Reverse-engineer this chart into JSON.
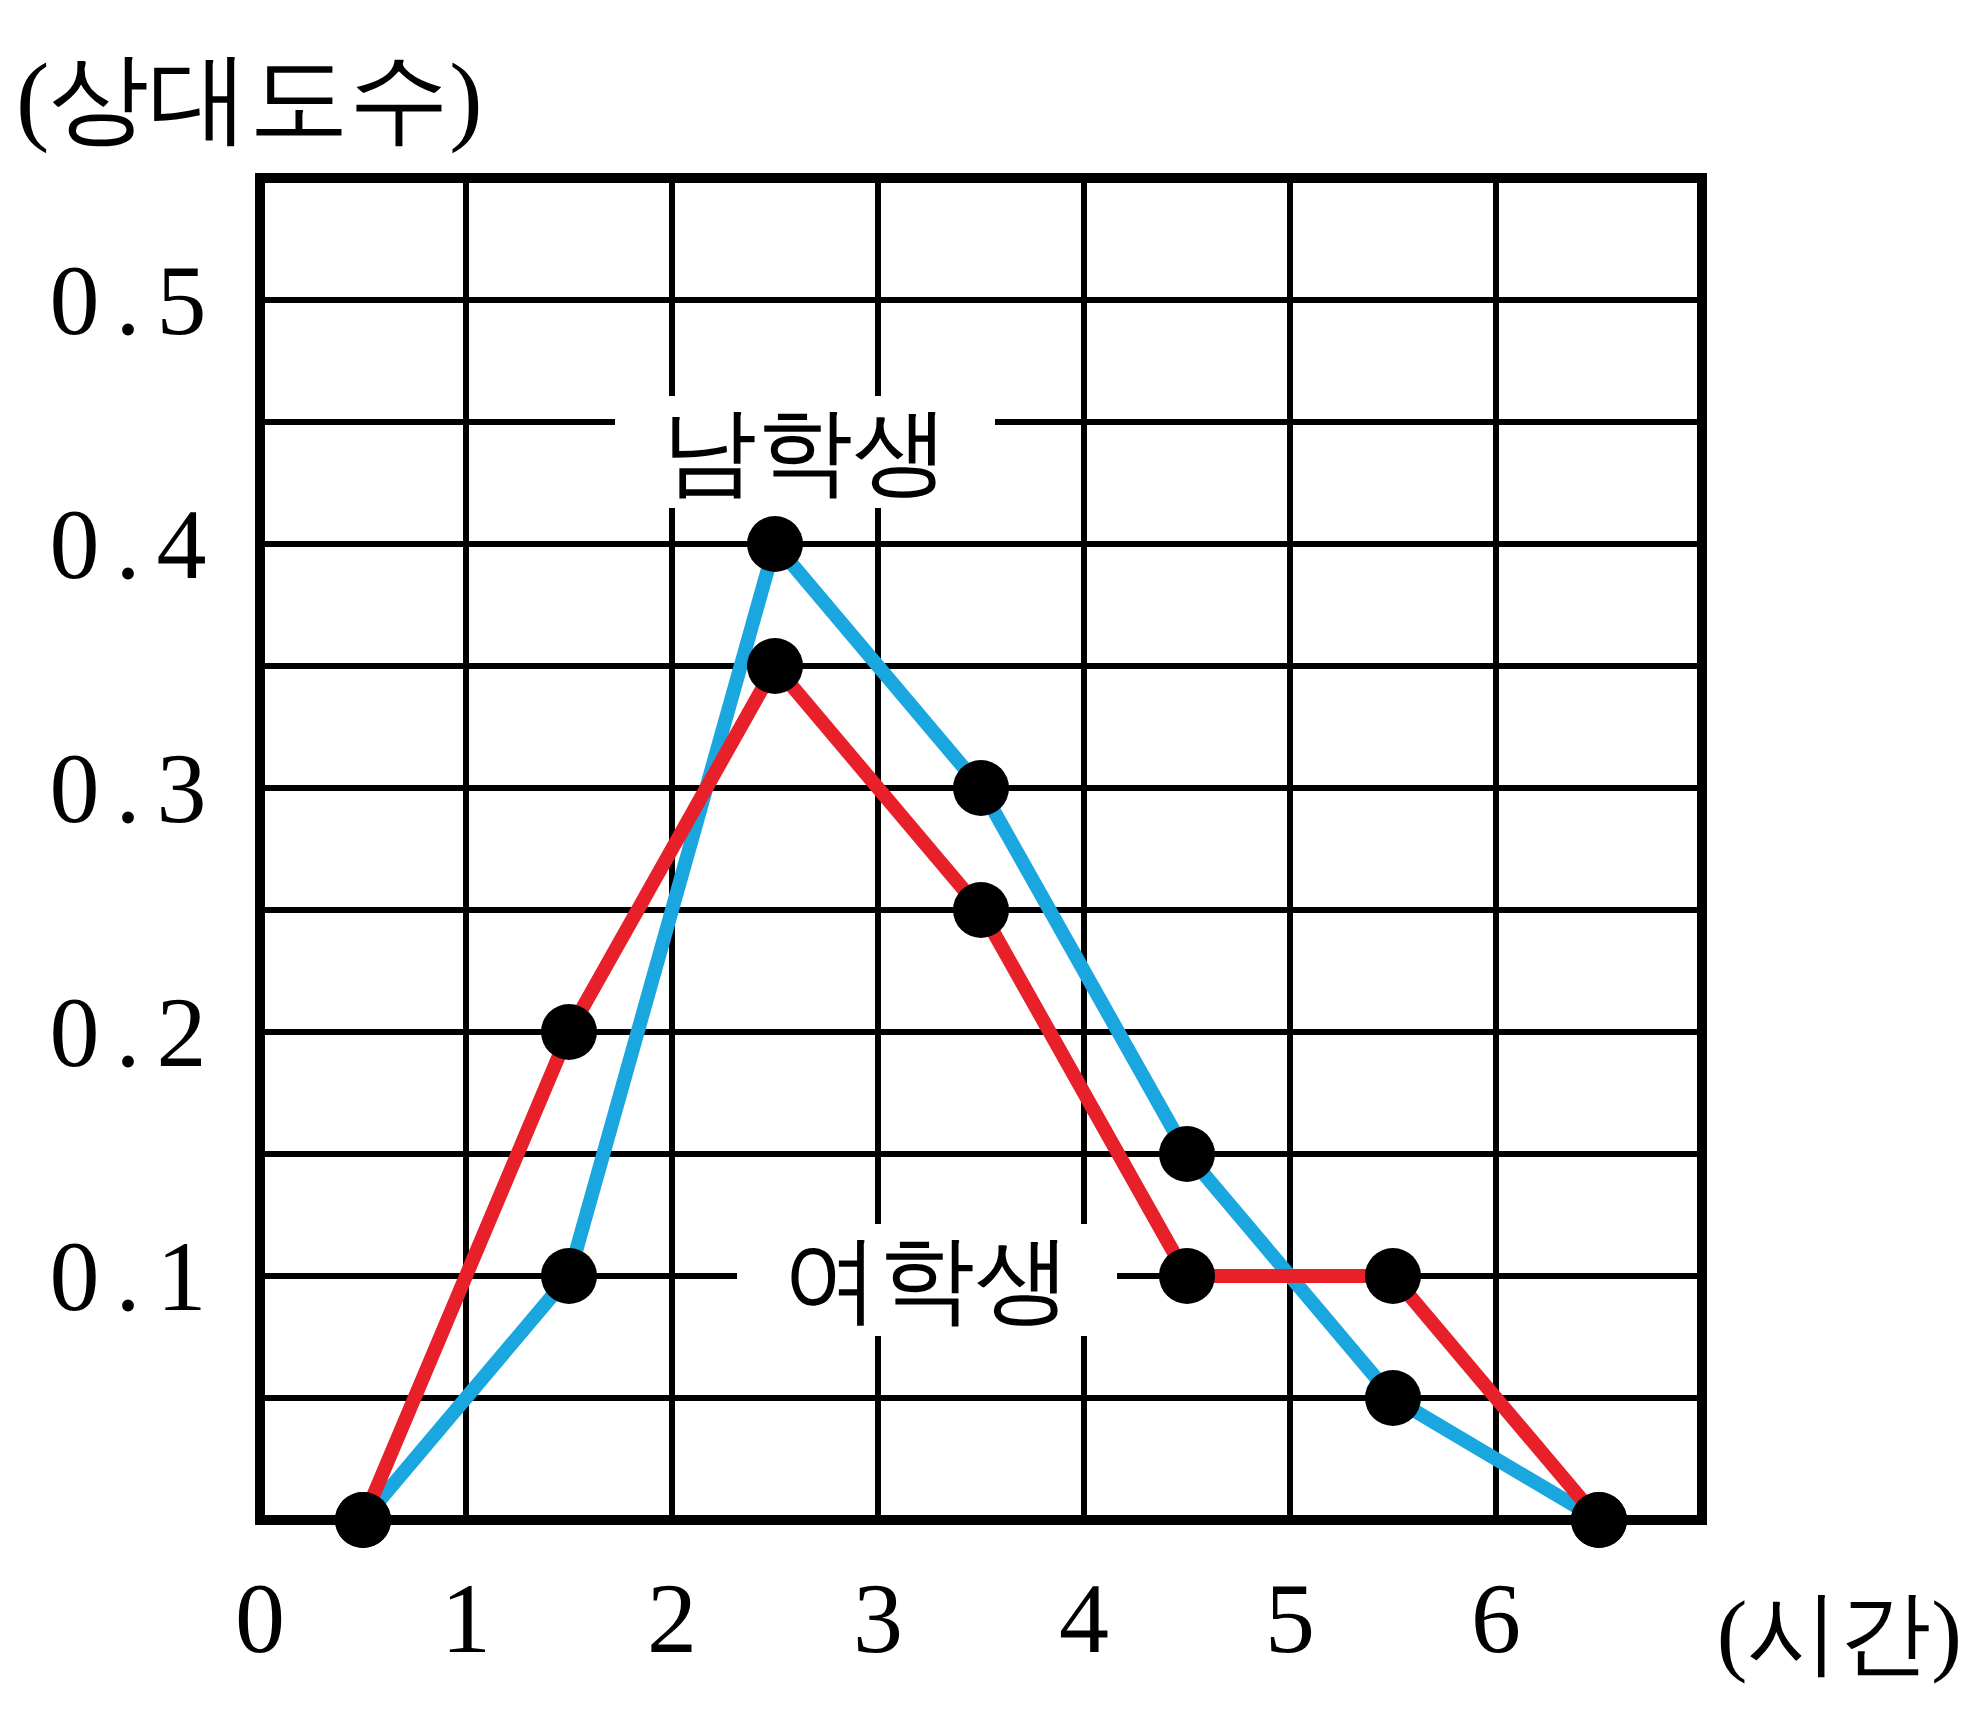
{
  "chart_data": {
    "type": "line",
    "xlabel": "(시간)",
    "ylabel": "(상대도수)",
    "x": [
      0.5,
      1.5,
      2.5,
      3.5,
      4.5,
      5.5,
      6.5
    ],
    "series": [
      {
        "name": "남학생",
        "color": "#1aa7e0",
        "values": [
          0,
          0.1,
          0.4,
          0.3,
          0.15,
          0.05,
          0
        ]
      },
      {
        "name": "여학생",
        "color": "#e8202a",
        "values": [
          0,
          0.2,
          0.35,
          0.25,
          0.1,
          0.1,
          0
        ]
      }
    ],
    "xlim": [
      0,
      7
    ],
    "xticks": [
      0,
      1,
      2,
      3,
      4,
      5,
      6,
      {
        "value": 7,
        "label": null
      }
    ],
    "ylim": [
      0,
      0.55
    ],
    "yticks": [
      {
        "value": 0.05,
        "label": null
      },
      0.1,
      {
        "value": 0.15,
        "label": null
      },
      0.2,
      {
        "value": 0.25,
        "label": null
      },
      0.3,
      {
        "value": 0.35,
        "label": null
      },
      0.4,
      {
        "value": 0.45,
        "label": null
      },
      0.5,
      {
        "value": 0.55,
        "label": null
      }
    ],
    "grid": true,
    "marker": "circle",
    "line_style": "solid"
  }
}
